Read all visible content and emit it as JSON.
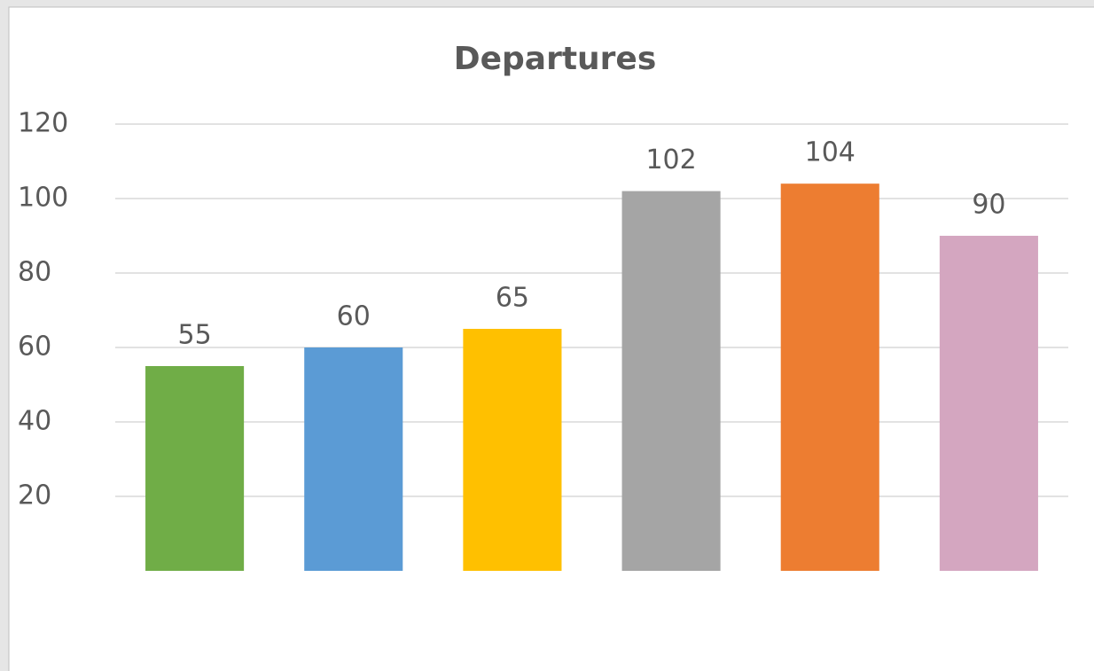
{
  "chart_data": {
    "type": "bar",
    "title": "Departures",
    "values": [
      55,
      60,
      65,
      102,
      104,
      90
    ],
    "colors": [
      "#70ad47",
      "#5b9bd5",
      "#ffc000",
      "#a5a5a5",
      "#ed7d31",
      "#d4a6c0"
    ],
    "ylim": [
      0,
      120
    ],
    "yticks": [
      20,
      40,
      60,
      80,
      100,
      120
    ],
    "grid": true,
    "data_labels": true
  }
}
